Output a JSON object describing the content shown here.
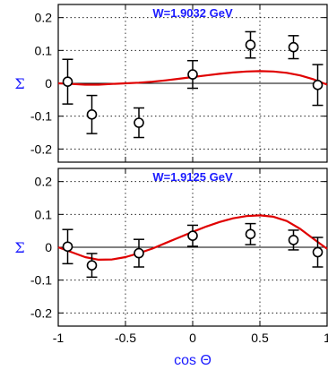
{
  "chart_data": [
    {
      "type": "scatter",
      "title": "W=1.9032 GeV",
      "xlabel": "",
      "ylabel": "Σ",
      "xlim": [
        -1,
        1
      ],
      "ylim": [
        -0.24,
        0.24
      ],
      "xticks": [
        -1,
        -0.5,
        0,
        0.5,
        1
      ],
      "xtick_labels": [],
      "yticks": [
        -0.2,
        -0.1,
        0,
        0.1,
        0.2
      ],
      "ytick_labels": [
        "-0.2",
        "-0.1",
        "0",
        "0.1",
        "0.2"
      ],
      "grid": "dotted",
      "zero_line": true,
      "points": {
        "x": [
          -0.93,
          -0.75,
          -0.4,
          0.0,
          0.43,
          0.75,
          0.93
        ],
        "y": [
          0.005,
          -0.095,
          -0.12,
          0.027,
          0.117,
          0.11,
          -0.005
        ],
        "err": [
          0.068,
          0.058,
          0.045,
          0.042,
          0.04,
          0.035,
          0.062
        ]
      },
      "curve": {
        "color": "#e00000",
        "x": [
          -1,
          -0.9,
          -0.8,
          -0.7,
          -0.6,
          -0.5,
          -0.4,
          -0.3,
          -0.2,
          -0.1,
          0,
          0.1,
          0.2,
          0.3,
          0.4,
          0.5,
          0.6,
          0.7,
          0.8,
          0.9,
          0.95,
          1
        ],
        "y": [
          0.0,
          -0.002,
          -0.004,
          -0.004,
          -0.002,
          0.0,
          0.002,
          0.005,
          0.009,
          0.014,
          0.019,
          0.024,
          0.029,
          0.033,
          0.036,
          0.037,
          0.036,
          0.032,
          0.024,
          0.012,
          0.004,
          -0.004
        ]
      }
    },
    {
      "type": "scatter",
      "title": "W=1.9125 GeV",
      "xlabel": "cos Θ",
      "ylabel": "Σ",
      "xlim": [
        -1,
        1
      ],
      "ylim": [
        -0.24,
        0.24
      ],
      "xticks": [
        -1,
        -0.5,
        0,
        0.5,
        1
      ],
      "xtick_labels": [
        "-1",
        "-0.5",
        "0",
        "0.5",
        "1"
      ],
      "yticks": [
        -0.2,
        -0.1,
        0,
        0.1,
        0.2
      ],
      "ytick_labels": [
        "-0.2",
        "-0.1",
        "0",
        "0.1",
        "0.2"
      ],
      "grid": "dotted",
      "zero_line": true,
      "points": {
        "x": [
          -0.93,
          -0.75,
          -0.4,
          0.0,
          0.43,
          0.75,
          0.93
        ],
        "y": [
          0.002,
          -0.055,
          -0.018,
          0.035,
          0.04,
          0.022,
          -0.015
        ],
        "err": [
          0.052,
          0.036,
          0.042,
          0.032,
          0.032,
          0.03,
          0.045
        ]
      },
      "curve": {
        "color": "#e00000",
        "x": [
          -1,
          -0.9,
          -0.8,
          -0.7,
          -0.6,
          -0.5,
          -0.4,
          -0.3,
          -0.2,
          -0.1,
          0,
          0.1,
          0.2,
          0.3,
          0.4,
          0.5,
          0.6,
          0.7,
          0.8,
          0.9,
          0.95,
          1
        ],
        "y": [
          0.0,
          -0.015,
          -0.03,
          -0.038,
          -0.037,
          -0.03,
          -0.018,
          -0.004,
          0.013,
          0.03,
          0.047,
          0.063,
          0.077,
          0.088,
          0.095,
          0.097,
          0.093,
          0.08,
          0.056,
          0.025,
          0.01,
          -0.005
        ]
      }
    }
  ]
}
